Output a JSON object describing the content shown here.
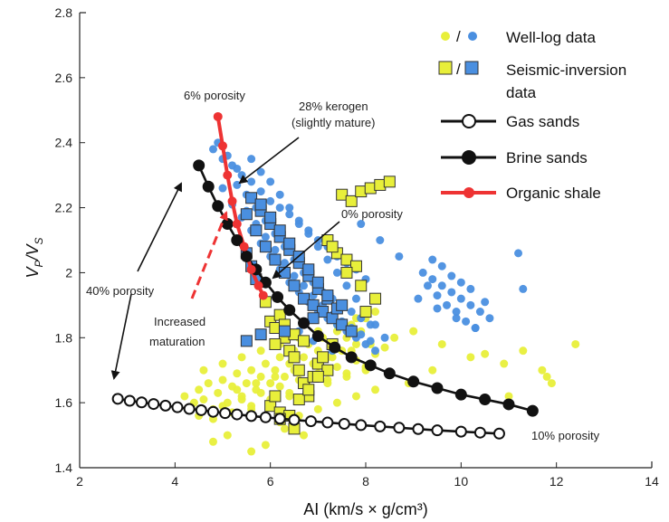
{
  "chart_data": {
    "type": "scatter",
    "title": "",
    "xlabel": "AI (km/s × g/cm³)",
    "ylabel_main": "V",
    "ylabel_sub_p": "P",
    "ylabel_slash": "/V",
    "ylabel_sub_s": "S",
    "xlim": [
      2,
      14
    ],
    "ylim": [
      1.4,
      2.8
    ],
    "x_ticks": [
      2,
      4,
      6,
      8,
      10,
      12,
      14
    ],
    "y_ticks": [
      1.4,
      1.6,
      1.8,
      2,
      2.2,
      2.4,
      2.6,
      2.8
    ],
    "x_tick_labels": [
      "2",
      "4",
      "6",
      "8",
      "10",
      "12",
      "14"
    ],
    "y_tick_labels": [
      "1.4",
      "1.6",
      "1.8",
      "2",
      "2.2",
      "2.4",
      "2.6",
      "2.8"
    ],
    "colors": {
      "yellow": "#e8ef3a",
      "blue": "#4a8fe0",
      "red": "#ee3333",
      "black": "#111111"
    },
    "legend": {
      "slash": "/",
      "well_log": "Well-log data",
      "seismic_line1": "Seismic-inversion",
      "seismic_line2": "data",
      "gas": "Gas sands",
      "brine": "Brine sands",
      "organic": "Organic shale"
    },
    "annotations": {
      "six_porosity": "6% porosity",
      "kerogen_line1": "28% kerogen",
      "kerogen_line2": "(slightly mature)",
      "zero_porosity": "0% porosity",
      "forty_porosity": "40% porosity",
      "maturation_line1": "Increased",
      "maturation_line2": "maturation",
      "ten_porosity": "10% porosity"
    },
    "series": [
      {
        "name": "Gas sands",
        "marker": "open-circle",
        "x": [
          2.8,
          3.05,
          3.3,
          3.55,
          3.8,
          4.05,
          4.3,
          4.55,
          4.8,
          5.05,
          5.3,
          5.6,
          5.9,
          6.2,
          6.5,
          6.85,
          7.2,
          7.55,
          7.9,
          8.3,
          8.7,
          9.1,
          9.5,
          10.0,
          10.4,
          10.8
        ],
        "y": [
          1.612,
          1.606,
          1.601,
          1.596,
          1.591,
          1.586,
          1.581,
          1.577,
          1.572,
          1.568,
          1.564,
          1.559,
          1.555,
          1.551,
          1.547,
          1.543,
          1.539,
          1.535,
          1.531,
          1.527,
          1.523,
          1.519,
          1.515,
          1.511,
          1.508,
          1.505
        ]
      },
      {
        "name": "Brine sands",
        "marker": "filled-circle",
        "x": [
          4.5,
          4.7,
          4.9,
          5.1,
          5.3,
          5.5,
          5.7,
          5.9,
          6.15,
          6.4,
          6.7,
          7.0,
          7.35,
          7.7,
          8.1,
          8.5,
          9.0,
          9.5,
          10.0,
          10.5,
          11.0,
          11.5
        ],
        "y": [
          2.33,
          2.265,
          2.205,
          2.15,
          2.1,
          2.05,
          2.01,
          1.97,
          1.925,
          1.885,
          1.845,
          1.805,
          1.77,
          1.74,
          1.715,
          1.69,
          1.665,
          1.645,
          1.625,
          1.61,
          1.595,
          1.575
        ]
      },
      {
        "name": "Organic shale",
        "marker": "red-circle",
        "x": [
          4.9,
          5.0,
          5.1,
          5.2,
          5.3,
          5.45,
          5.6,
          5.75,
          5.85
        ],
        "y": [
          2.48,
          2.39,
          2.3,
          2.22,
          2.15,
          2.08,
          2.01,
          1.96,
          1.93
        ]
      }
    ],
    "well_log_yellow": {
      "x": [
        4.2,
        4.4,
        4.5,
        4.6,
        4.7,
        4.8,
        4.9,
        5.0,
        5.1,
        5.2,
        5.3,
        5.4,
        5.5,
        5.6,
        5.7,
        5.8,
        5.9,
        6.0,
        6.1,
        6.2,
        6.3,
        6.4,
        6.5,
        6.6,
        6.7,
        6.8,
        6.9,
        7.0,
        7.1,
        7.2,
        7.3,
        7.4,
        7.5,
        7.6,
        7.7,
        7.8,
        7.9,
        8.0,
        4.5,
        4.8,
        5.0,
        5.2,
        5.4,
        5.6,
        5.8,
        6.0,
        6.2,
        6.4,
        6.6,
        6.8,
        7.0,
        7.2,
        7.4,
        7.6,
        7.8,
        8.0,
        8.2,
        8.4,
        4.6,
        5.0,
        5.4,
        5.8,
        6.2,
        6.6,
        7.0,
        7.4,
        7.8,
        8.2,
        5.3,
        5.7,
        6.1,
        6.5,
        6.9,
        7.3,
        7.7,
        8.1,
        5.6,
        6.0,
        6.4,
        6.8,
        7.2,
        7.6,
        8.0,
        6.2,
        6.6,
        7.0,
        7.4,
        7.8,
        8.2,
        8.6,
        9.0,
        9.6,
        10.2,
        10.9,
        11.3,
        11.7,
        11.8,
        12.4,
        11.9,
        5.6,
        5.9,
        4.8,
        5.1,
        6.3,
        6.7,
        8.9,
        9.4,
        10.5,
        11.0
      ],
      "y": [
        1.62,
        1.6,
        1.64,
        1.61,
        1.66,
        1.58,
        1.63,
        1.67,
        1.6,
        1.65,
        1.69,
        1.62,
        1.66,
        1.7,
        1.64,
        1.68,
        1.72,
        1.66,
        1.7,
        1.74,
        1.68,
        1.72,
        1.76,
        1.7,
        1.74,
        1.78,
        1.72,
        1.76,
        1.8,
        1.74,
        1.78,
        1.82,
        1.76,
        1.8,
        1.84,
        1.78,
        1.82,
        1.86,
        1.56,
        1.55,
        1.59,
        1.57,
        1.61,
        1.59,
        1.63,
        1.61,
        1.65,
        1.63,
        1.67,
        1.65,
        1.69,
        1.67,
        1.71,
        1.69,
        1.73,
        1.71,
        1.75,
        1.77,
        1.7,
        1.72,
        1.74,
        1.76,
        1.78,
        1.8,
        1.82,
        1.84,
        1.86,
        1.88,
        1.64,
        1.66,
        1.68,
        1.7,
        1.72,
        1.74,
        1.76,
        1.78,
        1.58,
        1.6,
        1.62,
        1.64,
        1.66,
        1.68,
        1.7,
        1.54,
        1.56,
        1.58,
        1.6,
        1.62,
        1.64,
        1.8,
        1.82,
        1.78,
        1.74,
        1.72,
        1.76,
        1.7,
        1.68,
        1.78,
        1.66,
        1.45,
        1.47,
        1.48,
        1.5,
        1.52,
        1.5,
        1.66,
        1.7,
        1.75,
        1.62
      ]
    },
    "well_log_blue": {
      "x": [
        4.8,
        5.0,
        5.2,
        5.4,
        5.6,
        5.8,
        6.0,
        6.2,
        6.4,
        6.6,
        6.8,
        7.0,
        7.2,
        7.4,
        7.6,
        7.8,
        8.0,
        4.9,
        5.1,
        5.3,
        5.5,
        5.7,
        5.9,
        6.1,
        6.3,
        6.5,
        6.7,
        6.9,
        7.1,
        7.3,
        7.5,
        7.7,
        7.9,
        8.1,
        5.0,
        5.2,
        5.4,
        5.6,
        5.8,
        6.0,
        6.2,
        6.4,
        6.6,
        6.8,
        7.0,
        7.2,
        7.4,
        7.6,
        7.8,
        8.0,
        8.2,
        5.1,
        5.3,
        5.5,
        5.7,
        5.9,
        6.1,
        6.3,
        6.5,
        6.7,
        6.9,
        7.1,
        7.3,
        7.5,
        7.7,
        7.9,
        8.1,
        5.6,
        5.8,
        6.0,
        6.2,
        6.4,
        6.6,
        6.8,
        7.0,
        7.2,
        7.4,
        7.6,
        7.8,
        8.0,
        8.2,
        8.4,
        9.2,
        9.4,
        9.6,
        9.8,
        10.0,
        10.2,
        10.4,
        10.6,
        9.3,
        9.5,
        9.7,
        9.9,
        10.1,
        10.3,
        10.5,
        9.4,
        9.6,
        9.8,
        10.0,
        10.2,
        9.1,
        9.5,
        9.9,
        10.3,
        11.2,
        11.3,
        7.9,
        8.3,
        8.7,
        6.6,
        6.9,
        7.3
      ],
      "y": [
        2.38,
        2.35,
        2.33,
        2.3,
        2.28,
        2.25,
        2.22,
        2.2,
        2.18,
        2.15,
        2.13,
        2.1,
        2.08,
        2.05,
        2.03,
        2.01,
        1.98,
        2.4,
        2.36,
        2.32,
        2.24,
        2.2,
        2.16,
        2.12,
        2.08,
        2.04,
        2.0,
        1.97,
        1.94,
        1.92,
        1.9,
        1.88,
        1.86,
        1.84,
        2.26,
        2.21,
        2.17,
        2.13,
        2.09,
        2.05,
        2.01,
        1.97,
        1.94,
        1.91,
        1.88,
        1.86,
        1.84,
        1.82,
        1.8,
        1.78,
        1.76,
        2.3,
        2.27,
        2.19,
        2.15,
        2.11,
        2.07,
        2.03,
        1.99,
        1.96,
        1.93,
        1.9,
        1.87,
        1.85,
        1.83,
        1.81,
        1.79,
        2.35,
        2.31,
        2.28,
        2.24,
        2.2,
        2.16,
        2.12,
        2.08,
        2.04,
        2.0,
        1.96,
        1.92,
        1.88,
        1.84,
        1.8,
        2.0,
        1.98,
        1.96,
        1.94,
        1.92,
        1.9,
        1.88,
        1.86,
        1.96,
        1.93,
        1.9,
        1.88,
        1.85,
        1.83,
        1.91,
        2.04,
        2.02,
        1.99,
        1.97,
        1.95,
        1.92,
        1.89,
        1.86,
        1.83,
        2.06,
        1.95,
        2.15,
        2.1,
        2.05,
        1.82,
        1.79,
        1.76
      ]
    },
    "seismic_yellow": {
      "x": [
        5.9,
        6.0,
        6.1,
        6.2,
        6.3,
        6.4,
        6.5,
        6.6,
        6.7,
        6.8,
        6.9,
        7.0,
        7.1,
        7.2,
        7.3,
        7.5,
        7.7,
        7.9,
        8.1,
        8.3,
        8.5,
        6.0,
        6.2,
        6.4,
        6.6,
        6.8,
        7.0,
        7.2,
        7.4,
        7.6,
        7.8,
        8.0,
        6.1,
        6.3,
        6.5,
        6.7,
        7.3,
        7.6,
        7.9,
        8.2,
        6.1,
        6.2,
        6.5
      ],
      "y": [
        1.91,
        1.85,
        1.83,
        1.87,
        1.8,
        1.76,
        1.74,
        1.7,
        1.66,
        1.62,
        1.68,
        1.72,
        1.74,
        1.7,
        1.78,
        2.24,
        2.22,
        2.25,
        2.26,
        2.27,
        2.28,
        1.59,
        1.57,
        1.56,
        1.61,
        1.64,
        1.68,
        2.1,
        2.06,
        2.04,
        2.02,
        1.88,
        1.78,
        1.84,
        1.81,
        1.79,
        2.08,
        2.0,
        1.96,
        1.92,
        1.62,
        1.55,
        1.52
      ]
    },
    "seismic_blue": {
      "x": [
        5.5,
        5.7,
        5.9,
        6.1,
        6.3,
        6.5,
        6.7,
        6.9,
        7.1,
        7.3,
        7.5,
        7.7,
        5.6,
        5.8,
        6.0,
        6.2,
        6.4,
        6.6,
        6.8,
        7.0,
        7.2,
        7.4,
        5.8,
        6.0,
        6.2,
        6.4,
        6.6,
        6.8,
        7.0,
        7.2,
        5.5,
        5.6,
        5.7,
        6.3,
        6.9,
        7.5,
        5.5,
        5.8
      ],
      "y": [
        2.18,
        2.13,
        2.08,
        2.04,
        2.0,
        1.96,
        1.92,
        1.9,
        1.88,
        1.86,
        1.84,
        1.82,
        2.23,
        2.19,
        2.15,
        2.11,
        2.07,
        2.03,
        1.99,
        1.95,
        1.92,
        1.89,
        2.21,
        2.17,
        2.13,
        2.09,
        2.05,
        2.01,
        1.97,
        1.93,
        2.06,
        2.02,
        1.98,
        1.82,
        1.86,
        1.9,
        1.79,
        1.81
      ]
    }
  }
}
